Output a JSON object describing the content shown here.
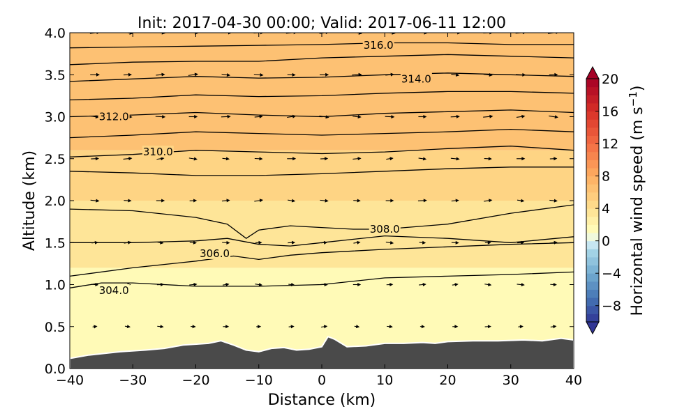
{
  "chart_data": {
    "type": "heatmap",
    "title": "Init: 2017-04-30 00:00; Valid: 2017-06-11 12:00",
    "xlabel": "Distance (km)",
    "ylabel": "Altitude (km)",
    "xlim": [
      -40,
      40
    ],
    "ylim": [
      0.0,
      4.0
    ],
    "x_ticks": [
      -40,
      -30,
      -20,
      -10,
      0,
      10,
      20,
      30,
      40
    ],
    "y_ticks": [
      0.0,
      0.5,
      1.0,
      1.5,
      2.0,
      2.5,
      3.0,
      3.5,
      4.0
    ],
    "colorbar": {
      "label": "Horizontal wind speed (m s⁻¹)",
      "label_main": "Horizontal wind speed (m s",
      "label_sup": "−1",
      "label_end": ")",
      "ticks": [
        20,
        16,
        12,
        8,
        4,
        0,
        -4,
        -8
      ],
      "tick_labels": [
        "20",
        "16",
        "12",
        "8",
        "4",
        "0",
        "−4",
        "−8"
      ],
      "range": [
        -10,
        20
      ],
      "extend": "both",
      "colormap": "RdYlBu_r",
      "stops": [
        {
          "value": -10,
          "color": "#313695"
        },
        {
          "value": -7,
          "color": "#4575b4"
        },
        {
          "value": -4,
          "color": "#74add1"
        },
        {
          "value": -1,
          "color": "#abd9e9"
        },
        {
          "value": 0,
          "color": "#e0f3f8"
        },
        {
          "value": 1,
          "color": "#ffffbf"
        },
        {
          "value": 4,
          "color": "#fee090"
        },
        {
          "value": 8,
          "color": "#fdae61"
        },
        {
          "value": 12,
          "color": "#f46d43"
        },
        {
          "value": 16,
          "color": "#d73027"
        },
        {
          "value": 20,
          "color": "#a50026"
        }
      ]
    },
    "wind_speed_bands": [
      {
        "z0": 0.0,
        "z1": 1.2,
        "value": 1.5
      },
      {
        "z0": 1.2,
        "z1": 2.0,
        "value": 3.5
      },
      {
        "z0": 2.0,
        "z1": 2.6,
        "value": 5.0
      },
      {
        "z0": 2.6,
        "z1": 4.0,
        "value": 6.5
      }
    ],
    "theta_contours": [
      {
        "level": 304.0,
        "label": "304.0",
        "label_at": [
          -33,
          0.93
        ],
        "points": [
          [
            -40,
            0.96
          ],
          [
            -35,
            1.02
          ],
          [
            -30,
            1.02
          ],
          [
            -25,
            1.0
          ],
          [
            -20,
            0.98
          ],
          [
            -10,
            0.98
          ],
          [
            0,
            1.0
          ],
          [
            10,
            1.08
          ],
          [
            20,
            1.1
          ],
          [
            30,
            1.12
          ],
          [
            40,
            1.15
          ]
        ]
      },
      {
        "level": 306.0,
        "label": "306.0",
        "label_at": [
          -17,
          1.37
        ],
        "points": [
          [
            -40,
            1.1
          ],
          [
            -30,
            1.2
          ],
          [
            -20,
            1.28
          ],
          [
            -14,
            1.34
          ],
          [
            -10,
            1.3
          ],
          [
            -5,
            1.35
          ],
          [
            0,
            1.38
          ],
          [
            5,
            1.4
          ],
          [
            10,
            1.42
          ],
          [
            20,
            1.45
          ],
          [
            30,
            1.48
          ],
          [
            40,
            1.5
          ]
        ]
      },
      {
        "level": 306.5,
        "label": "",
        "label_at": null,
        "points": [
          [
            -40,
            1.5
          ],
          [
            -30,
            1.5
          ],
          [
            -20,
            1.52
          ],
          [
            -15,
            1.55
          ],
          [
            -10,
            1.48
          ],
          [
            -5,
            1.46
          ],
          [
            0,
            1.5
          ],
          [
            10,
            1.58
          ],
          [
            20,
            1.55
          ],
          [
            30,
            1.5
          ],
          [
            40,
            1.57
          ]
        ]
      },
      {
        "level": 308.0,
        "label": "308.0",
        "label_at": [
          10,
          1.66
        ],
        "points": [
          [
            -40,
            1.9
          ],
          [
            -30,
            1.88
          ],
          [
            -20,
            1.8
          ],
          [
            -15,
            1.72
          ],
          [
            -12,
            1.55
          ],
          [
            -10,
            1.65
          ],
          [
            -5,
            1.7
          ],
          [
            0,
            1.68
          ],
          [
            5,
            1.66
          ],
          [
            10,
            1.66
          ],
          [
            20,
            1.72
          ],
          [
            30,
            1.85
          ],
          [
            40,
            1.95
          ]
        ]
      },
      {
        "level": 309.0,
        "label": "",
        "label_at": null,
        "points": [
          [
            -40,
            2.35
          ],
          [
            -30,
            2.33
          ],
          [
            -20,
            2.3
          ],
          [
            -10,
            2.3
          ],
          [
            0,
            2.32
          ],
          [
            10,
            2.35
          ],
          [
            20,
            2.38
          ],
          [
            30,
            2.4
          ],
          [
            40,
            2.4
          ]
        ]
      },
      {
        "level": 310.0,
        "label": "310.0",
        "label_at": [
          -26,
          2.58
        ],
        "points": [
          [
            -40,
            2.52
          ],
          [
            -30,
            2.55
          ],
          [
            -20,
            2.6
          ],
          [
            -10,
            2.58
          ],
          [
            0,
            2.56
          ],
          [
            10,
            2.58
          ],
          [
            20,
            2.62
          ],
          [
            30,
            2.65
          ],
          [
            40,
            2.6
          ]
        ]
      },
      {
        "level": 311.0,
        "label": "",
        "label_at": null,
        "points": [
          [
            -40,
            2.75
          ],
          [
            -30,
            2.78
          ],
          [
            -20,
            2.82
          ],
          [
            -10,
            2.8
          ],
          [
            0,
            2.78
          ],
          [
            10,
            2.8
          ],
          [
            20,
            2.82
          ],
          [
            30,
            2.85
          ],
          [
            40,
            2.82
          ]
        ]
      },
      {
        "level": 312.0,
        "label": "312.0",
        "label_at": [
          -33,
          3.0
        ],
        "points": [
          [
            -40,
            3.0
          ],
          [
            -30,
            3.02
          ],
          [
            -20,
            3.05
          ],
          [
            -10,
            3.02
          ],
          [
            0,
            3.0
          ],
          [
            10,
            3.04
          ],
          [
            20,
            3.06
          ],
          [
            30,
            3.08
          ],
          [
            40,
            3.05
          ]
        ]
      },
      {
        "level": 313.0,
        "label": "",
        "label_at": null,
        "points": [
          [
            -40,
            3.2
          ],
          [
            -30,
            3.22
          ],
          [
            -20,
            3.26
          ],
          [
            -10,
            3.24
          ],
          [
            0,
            3.25
          ],
          [
            10,
            3.28
          ],
          [
            20,
            3.3
          ],
          [
            30,
            3.3
          ],
          [
            40,
            3.28
          ]
        ]
      },
      {
        "level": 314.0,
        "label": "314.0",
        "label_at": [
          15,
          3.45
        ],
        "points": [
          [
            -40,
            3.42
          ],
          [
            -30,
            3.45
          ],
          [
            -20,
            3.48
          ],
          [
            -10,
            3.46
          ],
          [
            0,
            3.47
          ],
          [
            10,
            3.5
          ],
          [
            20,
            3.52
          ],
          [
            30,
            3.5
          ],
          [
            40,
            3.48
          ]
        ]
      },
      {
        "level": 315.0,
        "label": "",
        "label_at": null,
        "points": [
          [
            -40,
            3.62
          ],
          [
            -30,
            3.65
          ],
          [
            -20,
            3.66
          ],
          [
            -10,
            3.66
          ],
          [
            0,
            3.7
          ],
          [
            10,
            3.72
          ],
          [
            20,
            3.74
          ],
          [
            30,
            3.72
          ],
          [
            40,
            3.7
          ]
        ]
      },
      {
        "level": 316.0,
        "label": "316.0",
        "label_at": [
          9,
          3.85
        ],
        "points": [
          [
            -40,
            3.82
          ],
          [
            -30,
            3.83
          ],
          [
            -20,
            3.84
          ],
          [
            -10,
            3.85
          ],
          [
            0,
            3.86
          ],
          [
            10,
            3.88
          ],
          [
            20,
            3.88
          ],
          [
            30,
            3.86
          ],
          [
            40,
            3.86
          ]
        ]
      }
    ],
    "terrain": [
      [
        -40,
        0.12
      ],
      [
        -37,
        0.16
      ],
      [
        -32,
        0.2
      ],
      [
        -28,
        0.22
      ],
      [
        -25,
        0.24
      ],
      [
        -22,
        0.28
      ],
      [
        -18,
        0.3
      ],
      [
        -16,
        0.33
      ],
      [
        -14,
        0.28
      ],
      [
        -12,
        0.22
      ],
      [
        -10,
        0.2
      ],
      [
        -8,
        0.24
      ],
      [
        -6,
        0.25
      ],
      [
        -4,
        0.22
      ],
      [
        -2,
        0.23
      ],
      [
        0,
        0.26
      ],
      [
        1,
        0.38
      ],
      [
        2,
        0.35
      ],
      [
        4,
        0.26
      ],
      [
        7,
        0.27
      ],
      [
        10,
        0.3
      ],
      [
        13,
        0.3
      ],
      [
        16,
        0.31
      ],
      [
        18,
        0.3
      ],
      [
        20,
        0.32
      ],
      [
        24,
        0.33
      ],
      [
        28,
        0.33
      ],
      [
        32,
        0.34
      ],
      [
        35,
        0.33
      ],
      [
        38,
        0.36
      ],
      [
        40,
        0.34
      ]
    ],
    "wind_vectors": {
      "u": [
        [
          1.2,
          0.3
        ],
        [
          2.0,
          0.45
        ],
        [
          2.6,
          0.7
        ],
        [
          3.2,
          0.9
        ],
        [
          4.0,
          1.0
        ]
      ],
      "note_levels_km": [
        0.5,
        1.0,
        1.5,
        2.0,
        2.5,
        3.0,
        3.5,
        4.0
      ]
    }
  }
}
